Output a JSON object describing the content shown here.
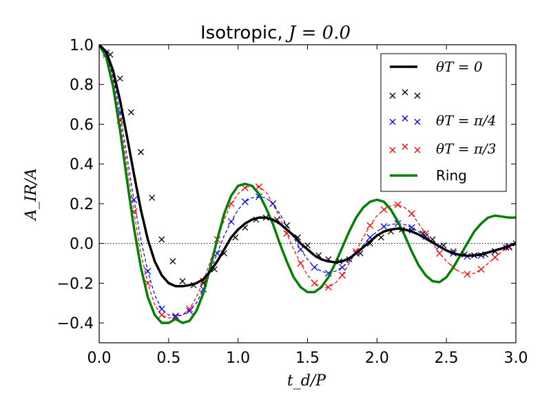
{
  "chart_data": {
    "type": "line",
    "title": "Isotropic, J = 0.0",
    "title_prefix": "Isotropic, ",
    "title_math": "J = 0.0",
    "xlabel": "t_d/P",
    "ylabel": "A_IR/A",
    "xlim": [
      0.0,
      3.0
    ],
    "ylim": [
      -0.5,
      1.0
    ],
    "xticks": [
      0.0,
      0.5,
      1.0,
      1.5,
      2.0,
      2.5,
      3.0
    ],
    "xtick_labels": [
      "0.0",
      "0.5",
      "1.0",
      "1.5",
      "2.0",
      "2.5",
      "3.0"
    ],
    "yticks": [
      -0.4,
      -0.2,
      0.0,
      0.2,
      0.4,
      0.6,
      0.8,
      1.0
    ],
    "ytick_labels": [
      "−0.4",
      "−0.2",
      "0.0",
      "0.2",
      "0.4",
      "0.6",
      "0.8",
      "1.0"
    ],
    "zero_line": true,
    "legend_placement": "top-right",
    "colors": {
      "black": "#000000",
      "blue": "#0000ff",
      "red": "#ff0000",
      "green": "#008000"
    },
    "series": [
      {
        "name": "θ_T = 0",
        "legend_label": "θT = 0",
        "style": "solid-thick",
        "color": "#000000",
        "x": [
          0.0,
          0.05,
          0.1,
          0.15,
          0.2,
          0.25,
          0.3,
          0.35,
          0.4,
          0.45,
          0.5,
          0.55,
          0.6,
          0.65,
          0.7,
          0.75,
          0.8,
          0.85,
          0.9,
          0.95,
          1.0,
          1.05,
          1.1,
          1.15,
          1.2,
          1.25,
          1.3,
          1.35,
          1.4,
          1.45,
          1.5,
          1.55,
          1.6,
          1.65,
          1.7,
          1.75,
          1.8,
          1.85,
          1.9,
          1.95,
          2.0,
          2.05,
          2.1,
          2.15,
          2.2,
          2.25,
          2.3,
          2.35,
          2.4,
          2.45,
          2.5,
          2.55,
          2.6,
          2.65,
          2.7,
          2.75,
          2.8,
          2.85,
          2.9,
          2.95,
          3.0
        ],
        "values": [
          1.0,
          0.965,
          0.87,
          0.72,
          0.54,
          0.35,
          0.17,
          0.02,
          -0.09,
          -0.16,
          -0.2,
          -0.215,
          -0.215,
          -0.21,
          -0.2,
          -0.18,
          -0.14,
          -0.09,
          -0.03,
          0.03,
          0.07,
          0.1,
          0.12,
          0.13,
          0.13,
          0.12,
          0.1,
          0.07,
          0.04,
          0.0,
          -0.03,
          -0.06,
          -0.08,
          -0.09,
          -0.095,
          -0.09,
          -0.075,
          -0.05,
          -0.02,
          0.01,
          0.04,
          0.06,
          0.07,
          0.075,
          0.07,
          0.06,
          0.045,
          0.025,
          0.005,
          -0.015,
          -0.035,
          -0.05,
          -0.058,
          -0.062,
          -0.06,
          -0.055,
          -0.045,
          -0.035,
          -0.025,
          -0.012,
          0.0
        ]
      },
      {
        "name": "black-markers",
        "legend_label": "",
        "style": "x-markers",
        "color": "#000000",
        "x": [
          0.08,
          0.15,
          0.23,
          0.3,
          0.38,
          0.45,
          0.53,
          0.6,
          0.68,
          0.75,
          0.83,
          0.9,
          0.98,
          1.05,
          1.13,
          1.2,
          1.28,
          1.35,
          1.43,
          1.5,
          1.58,
          1.65,
          1.73,
          1.8,
          1.88,
          1.95,
          2.03,
          2.1,
          2.18,
          2.25,
          2.33,
          2.4,
          2.48,
          2.55,
          2.63,
          2.7,
          2.78,
          2.85,
          2.93,
          3.0
        ],
        "values": [
          0.95,
          0.83,
          0.66,
          0.46,
          0.23,
          0.02,
          -0.09,
          -0.19,
          -0.21,
          -0.2,
          -0.13,
          -0.05,
          0.03,
          0.08,
          0.12,
          0.13,
          0.12,
          0.09,
          0.03,
          -0.01,
          -0.06,
          -0.08,
          -0.09,
          -0.08,
          -0.05,
          0.0,
          0.03,
          0.06,
          0.07,
          0.065,
          0.05,
          0.02,
          -0.01,
          -0.04,
          -0.055,
          -0.06,
          -0.055,
          -0.04,
          -0.02,
          0.0
        ]
      },
      {
        "name": "θ_T = π/4",
        "legend_label": "θT = π/4",
        "style": "dashed-x",
        "color": "#0000ff",
        "x": [
          0.0,
          0.05,
          0.1,
          0.15,
          0.2,
          0.25,
          0.3,
          0.35,
          0.4,
          0.45,
          0.5,
          0.55,
          0.6,
          0.65,
          0.7,
          0.75,
          0.8,
          0.85,
          0.9,
          0.95,
          1.0,
          1.05,
          1.1,
          1.15,
          1.2,
          1.25,
          1.3,
          1.35,
          1.4,
          1.45,
          1.5,
          1.55,
          1.6,
          1.65,
          1.7,
          1.75,
          1.8,
          1.85,
          1.9,
          1.95,
          2.0,
          2.05,
          2.1,
          2.15,
          2.2,
          2.25,
          2.3,
          2.35,
          2.4,
          2.45,
          2.5,
          2.55,
          2.6,
          2.65,
          2.7,
          2.75,
          2.8,
          2.85,
          2.9,
          2.95,
          3.0
        ],
        "values": [
          1.0,
          0.96,
          0.84,
          0.66,
          0.44,
          0.22,
          0.02,
          -0.14,
          -0.26,
          -0.33,
          -0.36,
          -0.365,
          -0.36,
          -0.34,
          -0.3,
          -0.23,
          -0.14,
          -0.05,
          0.04,
          0.11,
          0.17,
          0.21,
          0.23,
          0.235,
          0.23,
          0.2,
          0.15,
          0.09,
          0.03,
          -0.03,
          -0.08,
          -0.12,
          -0.14,
          -0.15,
          -0.14,
          -0.12,
          -0.09,
          -0.05,
          -0.01,
          0.03,
          0.06,
          0.085,
          0.095,
          0.1,
          0.095,
          0.08,
          0.06,
          0.035,
          0.01,
          -0.015,
          -0.035,
          -0.05,
          -0.06,
          -0.065,
          -0.065,
          -0.06,
          -0.05,
          -0.04,
          -0.03,
          -0.015,
          0.0
        ]
      },
      {
        "name": "θ_T = π/3",
        "legend_label": "θT = π/3",
        "style": "dashed-x",
        "color": "#ff0000",
        "x": [
          0.0,
          0.05,
          0.1,
          0.15,
          0.2,
          0.25,
          0.3,
          0.35,
          0.4,
          0.45,
          0.5,
          0.55,
          0.6,
          0.65,
          0.7,
          0.75,
          0.8,
          0.85,
          0.9,
          0.95,
          1.0,
          1.05,
          1.1,
          1.15,
          1.2,
          1.25,
          1.3,
          1.35,
          1.4,
          1.45,
          1.5,
          1.55,
          1.6,
          1.65,
          1.7,
          1.75,
          1.8,
          1.85,
          1.9,
          1.95,
          2.0,
          2.05,
          2.1,
          2.15,
          2.2,
          2.25,
          2.3,
          2.35,
          2.4,
          2.45,
          2.5,
          2.55,
          2.6,
          2.65,
          2.7,
          2.75,
          2.8,
          2.85,
          2.9,
          2.95,
          3.0
        ],
        "values": [
          1.0,
          0.95,
          0.82,
          0.62,
          0.39,
          0.16,
          -0.05,
          -0.2,
          -0.31,
          -0.36,
          -0.375,
          -0.37,
          -0.36,
          -0.33,
          -0.27,
          -0.19,
          -0.09,
          0.02,
          0.12,
          0.2,
          0.25,
          0.28,
          0.29,
          0.285,
          0.26,
          0.2,
          0.13,
          0.05,
          -0.03,
          -0.1,
          -0.16,
          -0.2,
          -0.22,
          -0.22,
          -0.2,
          -0.16,
          -0.1,
          -0.04,
          0.03,
          0.09,
          0.14,
          0.17,
          0.19,
          0.195,
          0.18,
          0.15,
          0.1,
          0.05,
          0.0,
          -0.05,
          -0.09,
          -0.12,
          -0.145,
          -0.155,
          -0.15,
          -0.13,
          -0.1,
          -0.07,
          -0.04,
          -0.02,
          0.0
        ]
      },
      {
        "name": "Ring",
        "legend_label": "Ring",
        "style": "solid-thick",
        "color": "#008000",
        "x": [
          0.0,
          0.05,
          0.1,
          0.15,
          0.2,
          0.25,
          0.3,
          0.35,
          0.4,
          0.45,
          0.5,
          0.55,
          0.6,
          0.65,
          0.7,
          0.75,
          0.8,
          0.85,
          0.9,
          0.95,
          1.0,
          1.05,
          1.1,
          1.15,
          1.2,
          1.25,
          1.3,
          1.35,
          1.4,
          1.45,
          1.5,
          1.55,
          1.6,
          1.65,
          1.7,
          1.75,
          1.8,
          1.85,
          1.9,
          1.95,
          2.0,
          2.05,
          2.1,
          2.15,
          2.2,
          2.25,
          2.3,
          2.35,
          2.4,
          2.45,
          2.5,
          2.55,
          2.6,
          2.65,
          2.7,
          2.75,
          2.8,
          2.85,
          2.9,
          2.95,
          3.0
        ],
        "values": [
          1.0,
          0.94,
          0.79,
          0.57,
          0.32,
          0.08,
          -0.12,
          -0.27,
          -0.36,
          -0.4,
          -0.4,
          -0.38,
          -0.4,
          -0.39,
          -0.34,
          -0.25,
          -0.12,
          0.02,
          0.15,
          0.24,
          0.29,
          0.3,
          0.29,
          0.25,
          0.18,
          0.1,
          0.0,
          -0.09,
          -0.17,
          -0.22,
          -0.245,
          -0.245,
          -0.22,
          -0.17,
          -0.1,
          -0.02,
          0.06,
          0.13,
          0.18,
          0.21,
          0.22,
          0.21,
          0.17,
          0.11,
          0.04,
          -0.04,
          -0.11,
          -0.16,
          -0.19,
          -0.195,
          -0.17,
          -0.12,
          -0.06,
          0.0,
          0.06,
          0.1,
          0.13,
          0.14,
          0.135,
          0.13,
          0.13
        ]
      }
    ]
  }
}
